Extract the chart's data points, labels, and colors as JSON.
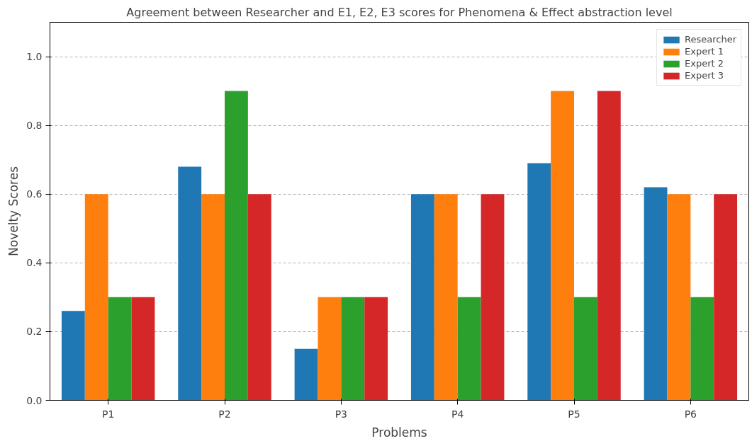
{
  "chart_data": {
    "type": "bar",
    "title": "Agreement between Researcher and E1, E2, E3 scores for Phenomena & Effect abstraction level",
    "xlabel": "Problems",
    "ylabel": "Novelty Scores",
    "categories": [
      "P1",
      "P2",
      "P3",
      "P4",
      "P5",
      "P6"
    ],
    "series": [
      {
        "name": "Researcher",
        "color": "#1f77b4",
        "values": [
          0.26,
          0.68,
          0.15,
          0.6,
          0.69,
          0.62
        ]
      },
      {
        "name": "Expert 1",
        "color": "#ff7f0e",
        "values": [
          0.6,
          0.6,
          0.3,
          0.6,
          0.9,
          0.6
        ]
      },
      {
        "name": "Expert 2",
        "color": "#2ca02c",
        "values": [
          0.3,
          0.9,
          0.3,
          0.3,
          0.3,
          0.3
        ]
      },
      {
        "name": "Expert 3",
        "color": "#d62728",
        "values": [
          0.3,
          0.6,
          0.3,
          0.6,
          0.9,
          0.6
        ]
      }
    ],
    "ylim": [
      0,
      1.1
    ],
    "yticks": [
      {
        "value": 0,
        "label": "0.0"
      },
      0.2,
      0.4,
      0.6,
      0.8,
      {
        "value": 1,
        "label": "1.0"
      }
    ],
    "grid": "y",
    "legend": "top right"
  }
}
